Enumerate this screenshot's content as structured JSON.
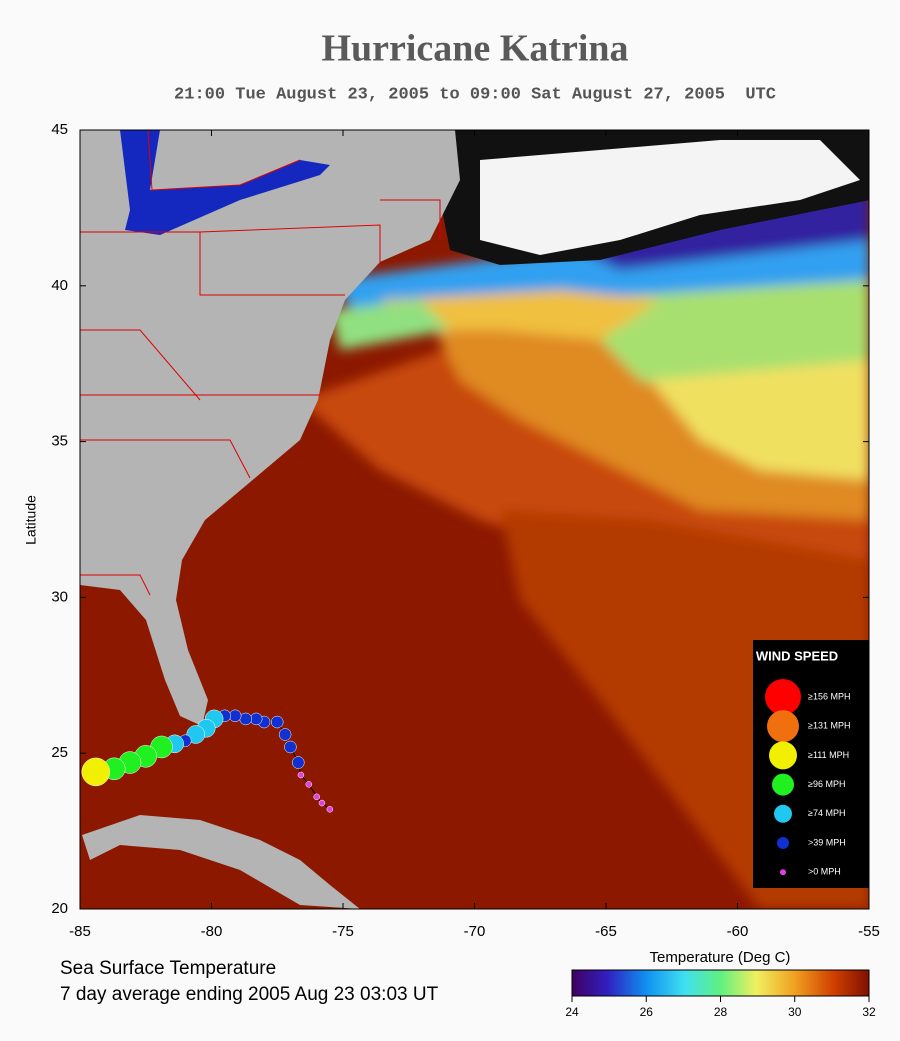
{
  "title": "Hurricane Katrina",
  "subtitle": "21:00 Tue August 23, 2005 to 09:00 Sat August 27, 2005  UTC",
  "map": {
    "xlim": [
      -85,
      -55
    ],
    "ylim": [
      20,
      45
    ],
    "xticks": [
      -85,
      -80,
      -75,
      -70,
      -65,
      -60,
      -55
    ],
    "yticks": [
      20,
      25,
      30,
      35,
      40,
      45
    ],
    "ylabel": "Latitude"
  },
  "legend": {
    "title": "WIND SPEED",
    "items": [
      {
        "label": "≥156 MPH",
        "color": "#ff0000"
      },
      {
        "label": "≥131 MPH",
        "color": "#f07010"
      },
      {
        "label": "≥111 MPH",
        "color": "#f0f000"
      },
      {
        "label": "≥96 MPH",
        "color": "#20f020"
      },
      {
        "label": "≥74 MPH",
        "color": "#20c8f0"
      },
      {
        "label": ">39 MPH",
        "color": "#1030d0"
      },
      {
        "label": ">0 MPH",
        "color": "#e040e0"
      }
    ]
  },
  "track": {
    "lon": [
      -75.5,
      -75.8,
      -76.0,
      -76.3,
      -76.6,
      -76.7,
      -77.0,
      -77.2,
      -77.5,
      -78.0,
      -78.3,
      -78.7,
      -79.1,
      -79.5,
      -79.9,
      -80.2,
      -80.6,
      -81.0,
      -81.4,
      -81.9,
      -82.5,
      -83.1,
      -83.7,
      -84.4
    ],
    "lat": [
      23.2,
      23.4,
      23.6,
      24.0,
      24.3,
      24.7,
      25.2,
      25.6,
      26.0,
      26.0,
      26.1,
      26.1,
      26.2,
      26.2,
      26.1,
      25.8,
      25.6,
      25.4,
      25.3,
      25.2,
      24.9,
      24.7,
      24.5,
      24.4
    ],
    "category": [
      6,
      6,
      6,
      6,
      6,
      5,
      5,
      5,
      5,
      5,
      5,
      5,
      5,
      5,
      4,
      4,
      4,
      5,
      4,
      3,
      3,
      3,
      3,
      2
    ]
  },
  "colorbar": {
    "label": "Temperature (Deg C)",
    "lim": [
      24,
      32
    ],
    "ticks": [
      24,
      26,
      28,
      30,
      32
    ]
  },
  "caption": [
    "Sea Surface Temperature",
    "7 day average ending 2005 Aug 23 03:03 UT"
  ]
}
